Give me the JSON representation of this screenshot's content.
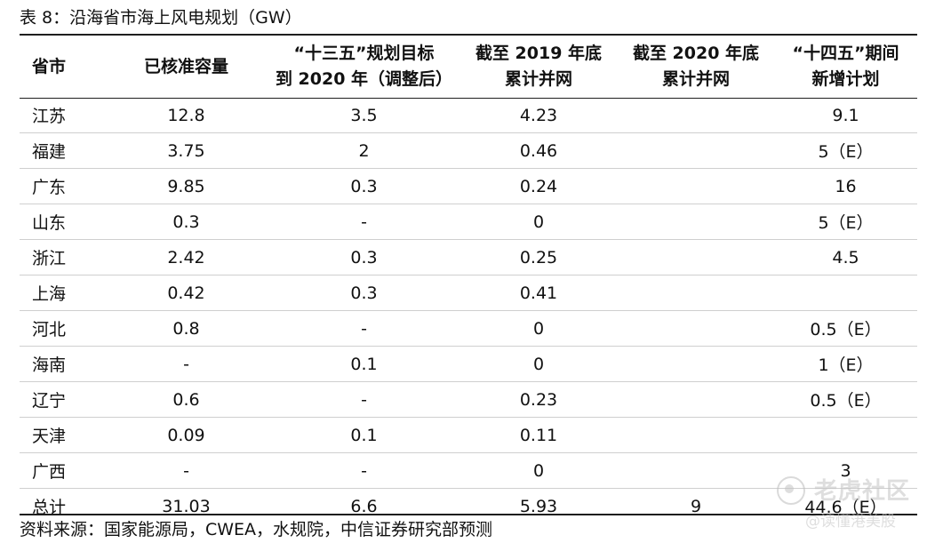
{
  "title": "表 8：沿海省市海上风电规划（GW）",
  "columns": [
    {
      "line1": "省市",
      "line2": ""
    },
    {
      "line1": "已核准容量",
      "line2": ""
    },
    {
      "line1": "“十三五”规划目标",
      "line2": "到 2020 年（调整后）"
    },
    {
      "line1": "截至 2019 年底",
      "line2": "累计并网"
    },
    {
      "line1": "截至 2020 年底",
      "line2": "累计并网"
    },
    {
      "line1": "“十四五”期间",
      "line2": "新增计划"
    }
  ],
  "rows": [
    [
      "江苏",
      "12.8",
      "3.5",
      "4.23",
      "",
      "9.1"
    ],
    [
      "福建",
      "3.75",
      "2",
      "0.46",
      "",
      "5（E）"
    ],
    [
      "广东",
      "9.85",
      "0.3",
      "0.24",
      "",
      "16"
    ],
    [
      "山东",
      "0.3",
      "-",
      "0",
      "",
      "5（E）"
    ],
    [
      "浙江",
      "2.42",
      "0.3",
      "0.25",
      "",
      "4.5"
    ],
    [
      "上海",
      "0.42",
      "0.3",
      "0.41",
      "",
      ""
    ],
    [
      "河北",
      "0.8",
      "-",
      "0",
      "",
      "0.5（E）"
    ],
    [
      "海南",
      "-",
      "0.1",
      "0",
      "",
      "1（E）"
    ],
    [
      "辽宁",
      "0.6",
      "-",
      "0.23",
      "",
      "0.5（E）"
    ],
    [
      "天津",
      "0.09",
      "0.1",
      "0.11",
      "",
      ""
    ],
    [
      "广西",
      "-",
      "-",
      "0",
      "",
      "3"
    ],
    [
      "总计",
      "31.03",
      "6.6",
      "5.93",
      "9",
      "44.6（E）"
    ]
  ],
  "source": "资料来源：国家能源局，CWEA，水规院，中信证券研究部预测",
  "watermark": {
    "name": "老虎社区",
    "sub": "@读懂港美股"
  }
}
